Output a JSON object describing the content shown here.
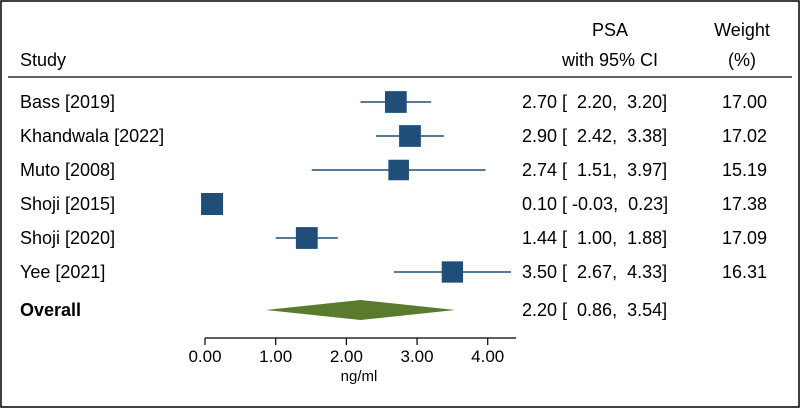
{
  "chart_data": {
    "type": "forest",
    "header": {
      "study": "Study",
      "effect_line1": "PSA",
      "effect_line2": "with 95% CI",
      "weight_line1": "Weight",
      "weight_line2": "(%)"
    },
    "studies": [
      {
        "name": "Bass [2019]",
        "est": 2.7,
        "lo": 2.2,
        "hi": 3.2,
        "ci_text": "2.70 [  2.20,  3.20]",
        "weight": "17.00",
        "weight_value": 17.0
      },
      {
        "name": "Khandwala [2022]",
        "est": 2.9,
        "lo": 2.42,
        "hi": 3.38,
        "ci_text": "2.90 [  2.42,  3.38]",
        "weight": "17.02",
        "weight_value": 17.02
      },
      {
        "name": "Muto [2008]",
        "est": 2.74,
        "lo": 1.51,
        "hi": 3.97,
        "ci_text": "2.74 [  1.51,  3.97]",
        "weight": "15.19",
        "weight_value": 15.19
      },
      {
        "name": "Shoji [2015]",
        "est": 0.1,
        "lo": -0.03,
        "hi": 0.23,
        "ci_text": "0.10 [ -0.03,  0.23]",
        "weight": "17.38",
        "weight_value": 17.38
      },
      {
        "name": "Shoji [2020]",
        "est": 1.44,
        "lo": 1.0,
        "hi": 1.88,
        "ci_text": "1.44 [  1.00,  1.88]",
        "weight": "17.09",
        "weight_value": 17.09
      },
      {
        "name": "Yee [2021]",
        "est": 3.5,
        "lo": 2.67,
        "hi": 4.33,
        "ci_text": "3.50 [  2.67,  4.33]",
        "weight": "16.31",
        "weight_value": 16.31
      }
    ],
    "overall": {
      "name": "Overall",
      "est": 2.2,
      "lo": 0.86,
      "hi": 3.54,
      "ci_text": "2.20 [  0.86,  3.54]"
    },
    "x_ticks": [
      "0.00",
      "1.00",
      "2.00",
      "3.00",
      "4.00"
    ],
    "x_tick_values": [
      0,
      1,
      2,
      3,
      4
    ],
    "xlim": [
      0,
      4.4
    ],
    "xlabel": "ng/ml",
    "colors": {
      "marker": "#1f4e79",
      "diamond": "#5a7a2e",
      "line": "#000000"
    }
  }
}
